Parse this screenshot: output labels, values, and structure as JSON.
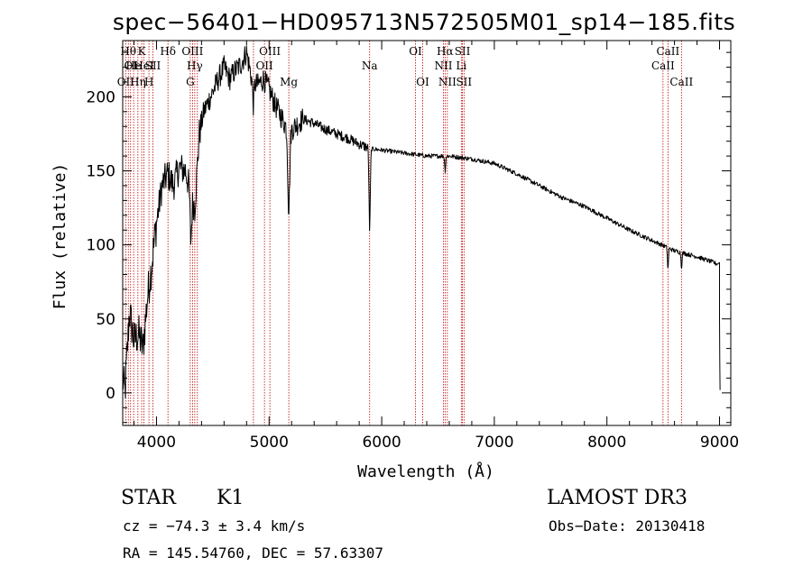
{
  "chart_data": {
    "type": "line",
    "title": "spec−56401−HD095713N572505M01_sp14−185.fits",
    "xlabel": "Wavelength (Å)",
    "ylabel": "Flux (relative)",
    "xlim": [
      3700,
      9100
    ],
    "ylim": [
      -22,
      238
    ],
    "xticks": [
      {
        "value": 4000,
        "label": "4000"
      },
      {
        "value": 5000,
        "label": "5000"
      },
      {
        "value": 6000,
        "label": "6000"
      },
      {
        "value": 7000,
        "label": "7000"
      },
      {
        "value": 8000,
        "label": "8000"
      },
      {
        "value": 9000,
        "label": "9000"
      }
    ],
    "yticks": [
      {
        "value": 0,
        "label": "0"
      },
      {
        "value": 50,
        "label": "50"
      },
      {
        "value": 100,
        "label": "100"
      },
      {
        "value": 150,
        "label": "150"
      },
      {
        "value": 200,
        "label": "200"
      }
    ],
    "line_color": "#c00000",
    "spectrum_color": "#000000",
    "spectrum_anchors": [
      [
        3700,
        10
      ],
      [
        3720,
        0
      ],
      [
        3760,
        55
      ],
      [
        3800,
        35
      ],
      [
        3840,
        40
      ],
      [
        3880,
        30
      ],
      [
        3920,
        65
      ],
      [
        3960,
        88
      ],
      [
        4000,
        115
      ],
      [
        4050,
        140
      ],
      [
        4100,
        148
      ],
      [
        4150,
        140
      ],
      [
        4200,
        152
      ],
      [
        4260,
        150
      ],
      [
        4300,
        135
      ],
      [
        4340,
        125
      ],
      [
        4380,
        175
      ],
      [
        4420,
        190
      ],
      [
        4480,
        200
      ],
      [
        4550,
        212
      ],
      [
        4600,
        220
      ],
      [
        4650,
        212
      ],
      [
        4700,
        218
      ],
      [
        4750,
        222
      ],
      [
        4800,
        230
      ],
      [
        4850,
        210
      ],
      [
        4900,
        208
      ],
      [
        4950,
        212
      ],
      [
        5000,
        205
      ],
      [
        5050,
        195
      ],
      [
        5100,
        188
      ],
      [
        5150,
        180
      ],
      [
        5200,
        178
      ],
      [
        5300,
        185
      ],
      [
        5400,
        182
      ],
      [
        5500,
        178
      ],
      [
        5600,
        175
      ],
      [
        5700,
        172
      ],
      [
        5800,
        168
      ],
      [
        5900,
        165
      ],
      [
        6000,
        164
      ],
      [
        6200,
        162
      ],
      [
        6400,
        160
      ],
      [
        6600,
        160
      ],
      [
        6800,
        158
      ],
      [
        7000,
        155
      ],
      [
        7200,
        148
      ],
      [
        7400,
        140
      ],
      [
        7600,
        132
      ],
      [
        7800,
        126
      ],
      [
        8000,
        118
      ],
      [
        8200,
        110
      ],
      [
        8400,
        103
      ],
      [
        8600,
        96
      ],
      [
        8800,
        92
      ],
      [
        8950,
        88
      ],
      [
        8980,
        87
      ]
    ],
    "absorption_dips": [
      {
        "x": 5175,
        "depth": 55,
        "width": 12
      },
      {
        "x": 5893,
        "depth": 55,
        "width": 8
      },
      {
        "x": 4305,
        "depth": 30,
        "width": 10
      },
      {
        "x": 4861,
        "depth": 15,
        "width": 8
      },
      {
        "x": 6563,
        "depth": 10,
        "width": 6
      },
      {
        "x": 8542,
        "depth": 15,
        "width": 6
      },
      {
        "x": 8662,
        "depth": 10,
        "width": 6
      }
    ],
    "spectrum_end": [
      [
        9000,
        88
      ],
      [
        9000,
        50
      ],
      [
        9002,
        20
      ],
      [
        9005,
        2
      ]
    ],
    "spectral_lines": [
      {
        "wavelength": 3727,
        "label": "OII",
        "row": 3
      },
      {
        "wavelength": 3750,
        "label": "Hθ",
        "row": 1
      },
      {
        "wavelength": 3770,
        "label": "OI",
        "row": 2
      },
      {
        "wavelength": 3797,
        "label": "He",
        "row": 2
      },
      {
        "wavelength": 3835,
        "label": "Hη",
        "row": 3
      },
      {
        "wavelength": 3869,
        "label": "K",
        "row": 1
      },
      {
        "wavelength": 3889,
        "label": "HeI",
        "row": 2
      },
      {
        "wavelength": 3933,
        "label": "H",
        "row": 3
      },
      {
        "wavelength": 3968,
        "label": "SII",
        "row": 2
      },
      {
        "wavelength": 4102,
        "label": "Hδ",
        "row": 1
      },
      {
        "wavelength": 4300,
        "label": "G",
        "row": 3
      },
      {
        "wavelength": 4320,
        "label": "OIII",
        "row": 1
      },
      {
        "wavelength": 4340,
        "label": "Hγ",
        "row": 2
      },
      {
        "wavelength": 4363,
        "label": "",
        "row": 0
      },
      {
        "wavelength": 4861,
        "label": "",
        "row": 0
      },
      {
        "wavelength": 4959,
        "label": "OII",
        "row": 2
      },
      {
        "wavelength": 5007,
        "label": "OIII",
        "row": 1
      },
      {
        "wavelength": 5175,
        "label": "Mg",
        "row": 3
      },
      {
        "wavelength": 5893,
        "label": "Na",
        "row": 2
      },
      {
        "wavelength": 6300,
        "label": "OI",
        "row": 1
      },
      {
        "wavelength": 6364,
        "label": "OI",
        "row": 3
      },
      {
        "wavelength": 6548,
        "label": "NII",
        "row": 2
      },
      {
        "wavelength": 6563,
        "label": "Hα",
        "row": 1
      },
      {
        "wavelength": 6583,
        "label": "NII",
        "row": 3
      },
      {
        "wavelength": 6707,
        "label": "Li",
        "row": 2
      },
      {
        "wavelength": 6717,
        "label": "SII",
        "row": 1
      },
      {
        "wavelength": 6731,
        "label": "SII",
        "row": 3
      },
      {
        "wavelength": 8498,
        "label": "CaII",
        "row": 2
      },
      {
        "wavelength": 8542,
        "label": "CaII",
        "row": 1
      },
      {
        "wavelength": 8662,
        "label": "CaII",
        "row": 3
      }
    ]
  },
  "info": {
    "object_class": "STAR",
    "subclass": "K1",
    "survey": "LAMOST DR3",
    "cz": "cz = −74.3 ± 3.4 km/s",
    "obs_date": "Obs−Date: 20130418",
    "radec": "RA = 145.54760, DEC =  57.63307"
  }
}
